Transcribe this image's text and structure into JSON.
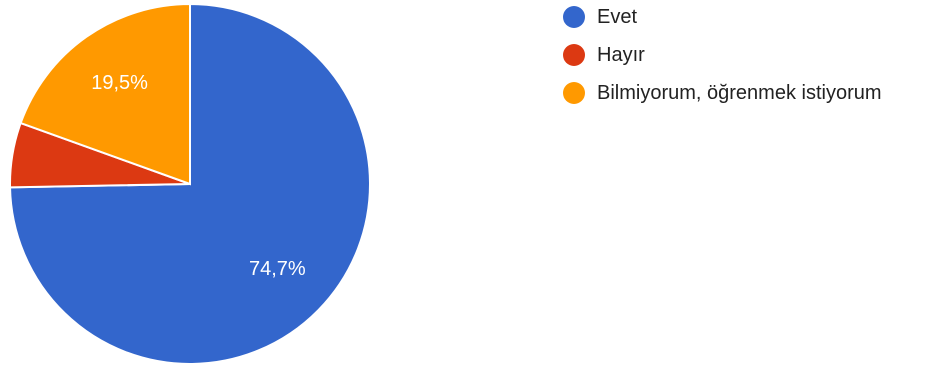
{
  "chart_data": {
    "type": "pie",
    "categories": [
      "Evet",
      "Hayır",
      "Bilmiyorum, öğrenmek istiyorum"
    ],
    "values": [
      74.7,
      5.8,
      19.5
    ],
    "data_labels": [
      "74,7%",
      "",
      "19,5%"
    ],
    "colors": [
      "#3366cc",
      "#dc3912",
      "#ff9900"
    ],
    "legend_position": "right"
  }
}
